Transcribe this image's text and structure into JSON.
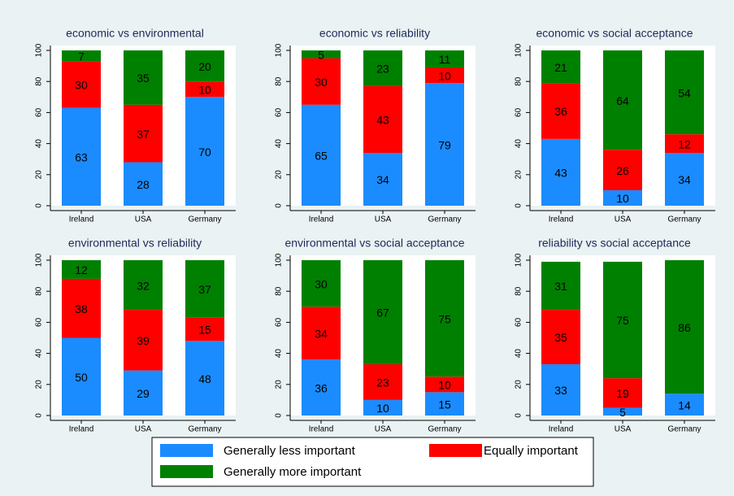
{
  "chart_data": [
    {
      "type": "stacked_bar",
      "title": "economic vs environmental",
      "categories": [
        "Ireland",
        "USA",
        "Germany"
      ],
      "series": [
        {
          "name": "Generally less important",
          "color": "#1a8cff",
          "values": [
            63,
            28,
            70
          ]
        },
        {
          "name": "Equally important",
          "color": "#ff0000",
          "values": [
            30,
            37,
            10
          ]
        },
        {
          "name": "Generally more important",
          "color": "#008000",
          "values": [
            7,
            35,
            20
          ]
        }
      ],
      "ylim": [
        0,
        100
      ],
      "yticks": [
        0,
        20,
        40,
        60,
        80,
        100
      ]
    },
    {
      "type": "stacked_bar",
      "title": "economic vs reliability",
      "categories": [
        "Ireland",
        "USA",
        "Germany"
      ],
      "series": [
        {
          "name": "Generally less important",
          "color": "#1a8cff",
          "values": [
            65,
            34,
            79
          ]
        },
        {
          "name": "Equally important",
          "color": "#ff0000",
          "values": [
            30,
            43,
            10
          ]
        },
        {
          "name": "Generally more important",
          "color": "#008000",
          "values": [
            5,
            23,
            11
          ]
        }
      ],
      "ylim": [
        0,
        100
      ],
      "yticks": [
        0,
        20,
        40,
        60,
        80,
        100
      ]
    },
    {
      "type": "stacked_bar",
      "title": "economic vs social acceptance",
      "categories": [
        "Ireland",
        "USA",
        "Germany"
      ],
      "series": [
        {
          "name": "Generally less important",
          "color": "#1a8cff",
          "values": [
            43,
            10,
            34
          ]
        },
        {
          "name": "Equally important",
          "color": "#ff0000",
          "values": [
            36,
            26,
            12
          ]
        },
        {
          "name": "Generally more important",
          "color": "#008000",
          "values": [
            21,
            64,
            54
          ]
        }
      ],
      "ylim": [
        0,
        100
      ],
      "yticks": [
        0,
        20,
        40,
        60,
        80,
        100
      ]
    },
    {
      "type": "stacked_bar",
      "title": "environmental vs reliability",
      "categories": [
        "Ireland",
        "USA",
        "Germany"
      ],
      "series": [
        {
          "name": "Generally less important",
          "color": "#1a8cff",
          "values": [
            50,
            29,
            48
          ]
        },
        {
          "name": "Equally important",
          "color": "#ff0000",
          "values": [
            38,
            39,
            15
          ]
        },
        {
          "name": "Generally more important",
          "color": "#008000",
          "values": [
            12,
            32,
            37
          ]
        }
      ],
      "ylim": [
        0,
        100
      ],
      "yticks": [
        0,
        20,
        40,
        60,
        80,
        100
      ]
    },
    {
      "type": "stacked_bar",
      "title": "environmental vs social acceptance",
      "categories": [
        "Ireland",
        "USA",
        "Germany"
      ],
      "series": [
        {
          "name": "Generally less important",
          "color": "#1a8cff",
          "values": [
            36,
            10,
            15
          ]
        },
        {
          "name": "Equally important",
          "color": "#ff0000",
          "values": [
            34,
            23,
            10
          ]
        },
        {
          "name": "Generally more important",
          "color": "#008000",
          "values": [
            30,
            67,
            75
          ]
        }
      ],
      "ylim": [
        0,
        100
      ],
      "yticks": [
        0,
        20,
        40,
        60,
        80,
        100
      ]
    },
    {
      "type": "stacked_bar",
      "title": "reliability vs social acceptance",
      "categories": [
        "Ireland",
        "USA",
        "Germany"
      ],
      "series": [
        {
          "name": "Generally less important",
          "color": "#1a8cff",
          "values": [
            33,
            5,
            14
          ]
        },
        {
          "name": "Equally important",
          "color": "#ff0000",
          "values": [
            35,
            19,
            0
          ]
        },
        {
          "name": "Generally more important",
          "color": "#008000",
          "values": [
            31,
            75,
            86
          ]
        }
      ],
      "ylim": [
        0,
        100
      ],
      "yticks": [
        0,
        20,
        40,
        60,
        80,
        100
      ]
    }
  ]
}
